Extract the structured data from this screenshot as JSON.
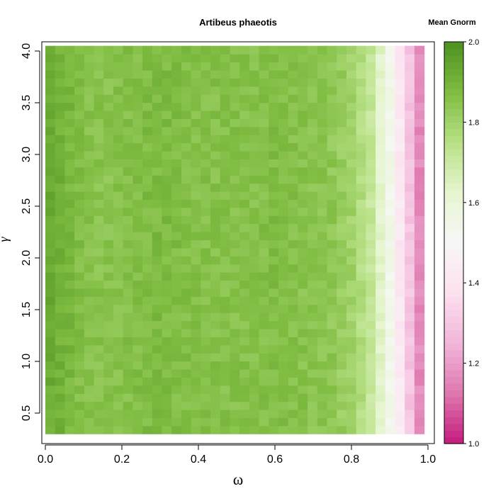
{
  "chart_data": {
    "type": "heatmap",
    "title": "Artibeus phaeotis",
    "xlabel": "ω",
    "ylabel": "γ",
    "xlim": [
      0,
      1
    ],
    "ylim": [
      0.2,
      4.05
    ],
    "x_ticks": [
      "0.0",
      "0.2",
      "0.4",
      "0.6",
      "0.8",
      "1.0"
    ],
    "y_ticks": [
      "0.5",
      "1.0",
      "1.5",
      "2.0",
      "2.5",
      "3.0",
      "3.5",
      "4.0"
    ],
    "colorbar": {
      "title": "Mean Gnorm",
      "range": [
        1.0,
        2.0
      ],
      "ticks": [
        "1.0",
        "1.2",
        "1.4",
        "1.6",
        "1.8",
        "2.0"
      ],
      "colors": [
        "#c51b7d",
        "#de77ae",
        "#f1b6da",
        "#fde0ef",
        "#f7f7f7",
        "#e6f5d0",
        "#b8e186",
        "#7fbc41",
        "#4d9221"
      ]
    },
    "x_centers": [
      0.0,
      0.05,
      0.1,
      0.15,
      0.2,
      0.25,
      0.3,
      0.35,
      0.4,
      0.45,
      0.5,
      0.55,
      0.6,
      0.65,
      0.7,
      0.75,
      0.8,
      0.85,
      0.9,
      0.95,
      1.0
    ],
    "gnorm_profile_by_x": [
      1.93,
      1.9,
      1.86,
      1.85,
      1.86,
      1.87,
      1.88,
      1.87,
      1.86,
      1.86,
      1.86,
      1.86,
      1.87,
      1.86,
      1.85,
      1.84,
      1.8,
      1.72,
      1.55,
      1.3,
      1.05
    ]
  }
}
